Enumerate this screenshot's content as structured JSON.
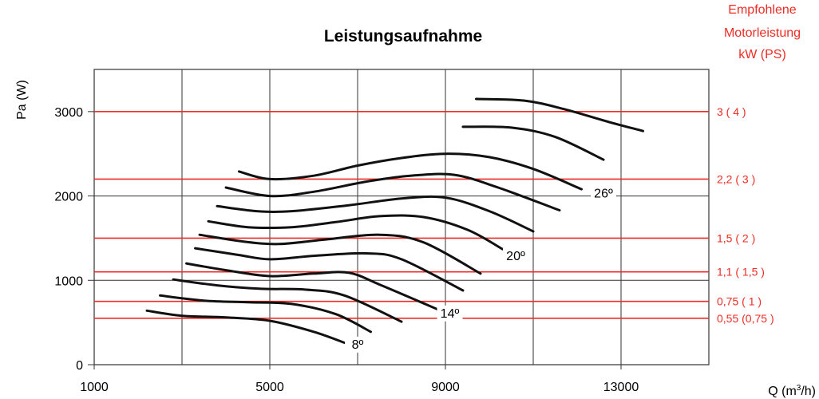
{
  "chart_data": {
    "type": "line",
    "title": "Leistungsaufnahme",
    "ylabel": "Pa (W)",
    "xlabel_prefix": "Q (m",
    "xlabel_sup": "3",
    "xlabel_suffix": "/h)",
    "xlim": [
      1000,
      15000
    ],
    "ylim": [
      0,
      3500
    ],
    "x_ticks": [
      "1000",
      "5000",
      "9000",
      "13000"
    ],
    "x_tick_values": [
      1000,
      5000,
      9000,
      13000
    ],
    "y_ticks": [
      "0",
      "1000",
      "2000",
      "3000"
    ],
    "y_tick_values": [
      0,
      1000,
      2000,
      3000
    ],
    "x_grid_values": [
      1000,
      3000,
      5000,
      7000,
      9000,
      11000,
      13000,
      15000
    ],
    "grid": true,
    "right_axis_title": [
      "Empfohlene",
      "Motorleistung",
      "kW (PS)"
    ],
    "motor_levels": [
      {
        "label": "3 ( 4 )",
        "value": 3000
      },
      {
        "label": "2,2 ( 3 )",
        "value": 2200
      },
      {
        "label": "1,5 ( 2 )",
        "value": 1500
      },
      {
        "label": "1,1 ( 1,5 )",
        "value": 1100
      },
      {
        "label": "0,75 ( 1 )",
        "value": 750
      },
      {
        "label": "0,55 (0,75 )",
        "value": 550
      }
    ],
    "series": [
      {
        "label": "8º",
        "points": [
          [
            2200,
            640
          ],
          [
            3000,
            580
          ],
          [
            4000,
            560
          ],
          [
            5000,
            520
          ],
          [
            6000,
            390
          ],
          [
            6700,
            260
          ]
        ]
      },
      {
        "label": "",
        "points": [
          [
            2500,
            820
          ],
          [
            3500,
            760
          ],
          [
            4500,
            740
          ],
          [
            5500,
            720
          ],
          [
            6500,
            600
          ],
          [
            7300,
            390
          ]
        ]
      },
      {
        "label": "",
        "points": [
          [
            2800,
            1010
          ],
          [
            3800,
            940
          ],
          [
            4800,
            900
          ],
          [
            5800,
            890
          ],
          [
            6700,
            820
          ],
          [
            8000,
            510
          ]
        ]
      },
      {
        "label": "14º",
        "points": [
          [
            3100,
            1200
          ],
          [
            4000,
            1120
          ],
          [
            5000,
            1050
          ],
          [
            6000,
            1080
          ],
          [
            6800,
            1090
          ],
          [
            7500,
            950
          ],
          [
            8800,
            660
          ]
        ]
      },
      {
        "label": "",
        "points": [
          [
            3300,
            1380
          ],
          [
            4300,
            1300
          ],
          [
            5000,
            1250
          ],
          [
            6000,
            1290
          ],
          [
            7200,
            1320
          ],
          [
            8000,
            1250
          ],
          [
            9400,
            880
          ]
        ]
      },
      {
        "label": "",
        "points": [
          [
            3400,
            1540
          ],
          [
            4400,
            1460
          ],
          [
            5200,
            1430
          ],
          [
            6200,
            1480
          ],
          [
            7500,
            1540
          ],
          [
            8500,
            1450
          ],
          [
            9800,
            1080
          ]
        ]
      },
      {
        "label": "20º",
        "points": [
          [
            3600,
            1700
          ],
          [
            4500,
            1630
          ],
          [
            5500,
            1630
          ],
          [
            6500,
            1690
          ],
          [
            7500,
            1760
          ],
          [
            8500,
            1750
          ],
          [
            9500,
            1600
          ],
          [
            10300,
            1370
          ]
        ]
      },
      {
        "label": "",
        "points": [
          [
            3800,
            1880
          ],
          [
            4700,
            1820
          ],
          [
            5500,
            1820
          ],
          [
            6800,
            1890
          ],
          [
            8000,
            1970
          ],
          [
            9000,
            1980
          ],
          [
            10000,
            1820
          ],
          [
            11000,
            1580
          ]
        ]
      },
      {
        "label": "",
        "points": [
          [
            4000,
            2100
          ],
          [
            5000,
            2000
          ],
          [
            6000,
            2050
          ],
          [
            7200,
            2170
          ],
          [
            8200,
            2240
          ],
          [
            9200,
            2250
          ],
          [
            10200,
            2100
          ],
          [
            11600,
            1830
          ]
        ]
      },
      {
        "label": "26º",
        "points": [
          [
            4300,
            2290
          ],
          [
            5000,
            2200
          ],
          [
            6000,
            2240
          ],
          [
            7000,
            2360
          ],
          [
            8000,
            2450
          ],
          [
            9000,
            2500
          ],
          [
            10000,
            2460
          ],
          [
            11000,
            2320
          ],
          [
            12100,
            2080
          ]
        ]
      },
      {
        "label": "",
        "points": [
          [
            9400,
            2820
          ],
          [
            10500,
            2810
          ],
          [
            11500,
            2700
          ],
          [
            12600,
            2430
          ]
        ]
      },
      {
        "label": "",
        "points": [
          [
            9700,
            3150
          ],
          [
            10800,
            3130
          ],
          [
            11700,
            3030
          ],
          [
            12700,
            2880
          ],
          [
            13500,
            2770
          ]
        ]
      }
    ],
    "curve_labels": [
      {
        "text": "8º",
        "x": 7000,
        "y": 190
      },
      {
        "text": "14º",
        "x": 9100,
        "y": 560
      },
      {
        "text": "20º",
        "x": 10600,
        "y": 1240
      },
      {
        "text": "26º",
        "x": 12600,
        "y": 1980
      }
    ],
    "colors": {
      "grid": "#333333",
      "red": "#ee2b24",
      "curve": "#111111",
      "ytick_red": "#ee2b24"
    }
  }
}
